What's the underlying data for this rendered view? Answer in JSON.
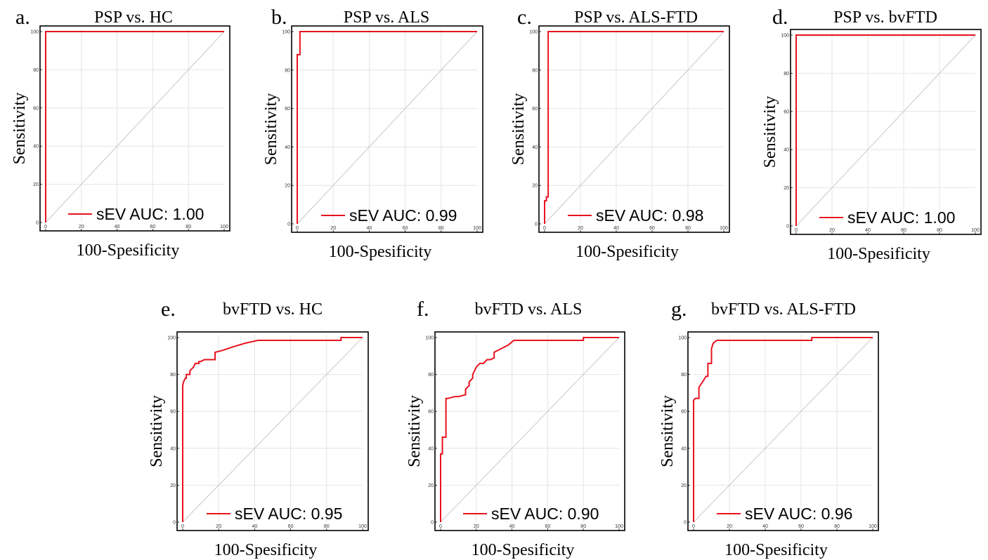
{
  "colors": {
    "roc_line": "#e8121f",
    "diagonal": "#c8c8c8",
    "grid": "#e4e4e4",
    "frame": "#000000"
  },
  "chart_data": [
    {
      "type": "line",
      "letter": "a.",
      "title": "PSP vs. HC",
      "xlabel": "100-Spesificity",
      "ylabel": "Sensitivity",
      "xlim": [
        0,
        100
      ],
      "ylim": [
        0,
        100
      ],
      "xticks": [
        "0",
        "20",
        "40",
        "60",
        "80",
        "100"
      ],
      "yticks": [
        "0",
        "20",
        "40",
        "60",
        "80",
        "100"
      ],
      "grid": true,
      "legend": "bottom-right",
      "series": [
        {
          "name": "sEV AUC: 1.00",
          "x": [
            0,
            0,
            100
          ],
          "y": [
            0,
            100,
            100
          ]
        },
        {
          "x": [
            0,
            100
          ],
          "y": [
            0,
            100
          ]
        }
      ]
    },
    {
      "type": "line",
      "letter": "b.",
      "title": "PSP vs. ALS",
      "xlabel": "100-Spesificity",
      "ylabel": "Sensitivity",
      "xlim": [
        0,
        100
      ],
      "ylim": [
        0,
        100
      ],
      "xticks": [
        "0",
        "20",
        "40",
        "60",
        "80",
        "100"
      ],
      "yticks": [
        "0",
        "20",
        "40",
        "60",
        "80",
        "100"
      ],
      "grid": true,
      "legend": "bottom-right",
      "series": [
        {
          "name": "sEV AUC: 0.99",
          "x": [
            0,
            0,
            0.5,
            1.5,
            1.5,
            100
          ],
          "y": [
            0,
            88,
            88,
            88,
            100,
            100
          ]
        },
        {
          "x": [
            0,
            100
          ],
          "y": [
            0,
            100
          ]
        }
      ]
    },
    {
      "type": "line",
      "letter": "c.",
      "title": "PSP vs. ALS-FTD",
      "xlabel": "100-Spesificity",
      "ylabel": "Sensitivity",
      "xlim": [
        0,
        100
      ],
      "ylim": [
        0,
        100
      ],
      "xticks": [
        "0",
        "20",
        "40",
        "60",
        "80",
        "100"
      ],
      "yticks": [
        "0",
        "20",
        "40",
        "60",
        "80",
        "100"
      ],
      "grid": true,
      "legend": "bottom-right",
      "series": [
        {
          "name": "sEV AUC: 0.98",
          "x": [
            0,
            0,
            1,
            1,
            2,
            2,
            100
          ],
          "y": [
            0,
            12,
            12,
            14,
            14,
            100,
            100
          ]
        },
        {
          "x": [
            0,
            100
          ],
          "y": [
            0,
            100
          ]
        }
      ]
    },
    {
      "type": "line",
      "letter": "d.",
      "title": "PSP vs. bvFTD",
      "xlabel": "100-Spesificity",
      "ylabel": "Sensitivity",
      "xlim": [
        0,
        100
      ],
      "ylim": [
        0,
        100
      ],
      "xticks": [
        "0",
        "20",
        "40",
        "60",
        "80",
        "100"
      ],
      "yticks": [
        "0",
        "20",
        "40",
        "60",
        "80",
        "100"
      ],
      "grid": true,
      "legend": "bottom-right",
      "series": [
        {
          "name": "sEV AUC: 1.00",
          "x": [
            0,
            0,
            100
          ],
          "y": [
            0,
            100,
            100
          ]
        },
        {
          "x": [
            0,
            100
          ],
          "y": [
            0,
            100
          ]
        }
      ]
    },
    {
      "type": "line",
      "letter": "e.",
      "title": "bvFTD vs. HC",
      "xlabel": "100-Spesificity",
      "ylabel": "Sensitivity",
      "xlim": [
        0,
        100
      ],
      "ylim": [
        0,
        100
      ],
      "xticks": [
        "0",
        "20",
        "40",
        "60",
        "80",
        "100"
      ],
      "yticks": [
        "0",
        "20",
        "40",
        "60",
        "80",
        "100"
      ],
      "grid": true,
      "legend": "bottom-right",
      "series": [
        {
          "name": "sEV AUC: 0.95",
          "x": [
            0,
            0,
            0.5,
            1,
            1.5,
            2,
            2,
            4,
            4,
            6,
            7,
            8,
            9,
            9,
            10,
            12,
            14,
            17,
            18,
            18,
            22,
            28,
            35,
            42,
            88,
            88,
            100
          ],
          "y": [
            0,
            74,
            76,
            77,
            78,
            78,
            80,
            80,
            82,
            84,
            86,
            86,
            86,
            87,
            87,
            88,
            88,
            88,
            88,
            92,
            93,
            95,
            97,
            98.5,
            98.5,
            100,
            100
          ]
        },
        {
          "x": [
            0,
            100
          ],
          "y": [
            0,
            100
          ]
        }
      ]
    },
    {
      "type": "line",
      "letter": "f.",
      "title": "bvFTD vs. ALS",
      "xlabel": "100-Spesificity",
      "ylabel": "Sensitivity",
      "xlim": [
        0,
        100
      ],
      "ylim": [
        0,
        100
      ],
      "xticks": [
        "0",
        "20",
        "40",
        "60",
        "80",
        "100"
      ],
      "yticks": [
        "0",
        "20",
        "40",
        "60",
        "80",
        "100"
      ],
      "grid": true,
      "legend": "bottom-right",
      "series": [
        {
          "name": "sEV AUC: 0.90",
          "x": [
            0,
            0,
            1,
            1,
            3,
            3,
            4,
            4,
            8,
            10,
            14,
            14,
            16,
            16,
            18,
            18,
            20,
            22,
            24,
            26,
            28,
            30,
            30,
            34,
            38,
            41,
            80,
            80,
            100
          ],
          "y": [
            0,
            37,
            37,
            46,
            46,
            67,
            67,
            67,
            68,
            68,
            69,
            72,
            74,
            76,
            78,
            80,
            84,
            86,
            86,
            88,
            88,
            89,
            92,
            94,
            96,
            98.5,
            98.5,
            100,
            100
          ]
        },
        {
          "x": [
            0,
            100
          ],
          "y": [
            0,
            100
          ]
        }
      ]
    },
    {
      "type": "line",
      "letter": "g.",
      "title": "bvFTD vs. ALS-FTD",
      "xlabel": "100-Spesificity",
      "ylabel": "Sensitivity",
      "xlim": [
        0,
        100
      ],
      "ylim": [
        0,
        100
      ],
      "xticks": [
        "0",
        "20",
        "40",
        "60",
        "80",
        "100"
      ],
      "yticks": [
        "0",
        "20",
        "40",
        "60",
        "80",
        "100"
      ],
      "grid": true,
      "legend": "bottom-right",
      "series": [
        {
          "name": "sEV AUC: 0.96",
          "x": [
            0,
            0,
            1,
            3,
            3,
            5,
            7,
            8,
            8,
            10,
            10,
            11,
            13,
            66,
            66,
            100
          ],
          "y": [
            0,
            66,
            67,
            67,
            73,
            76,
            79,
            79,
            86,
            86,
            94,
            97,
            98.5,
            98.5,
            100,
            100
          ]
        },
        {
          "x": [
            0,
            100
          ],
          "y": [
            0,
            100
          ]
        }
      ]
    }
  ]
}
